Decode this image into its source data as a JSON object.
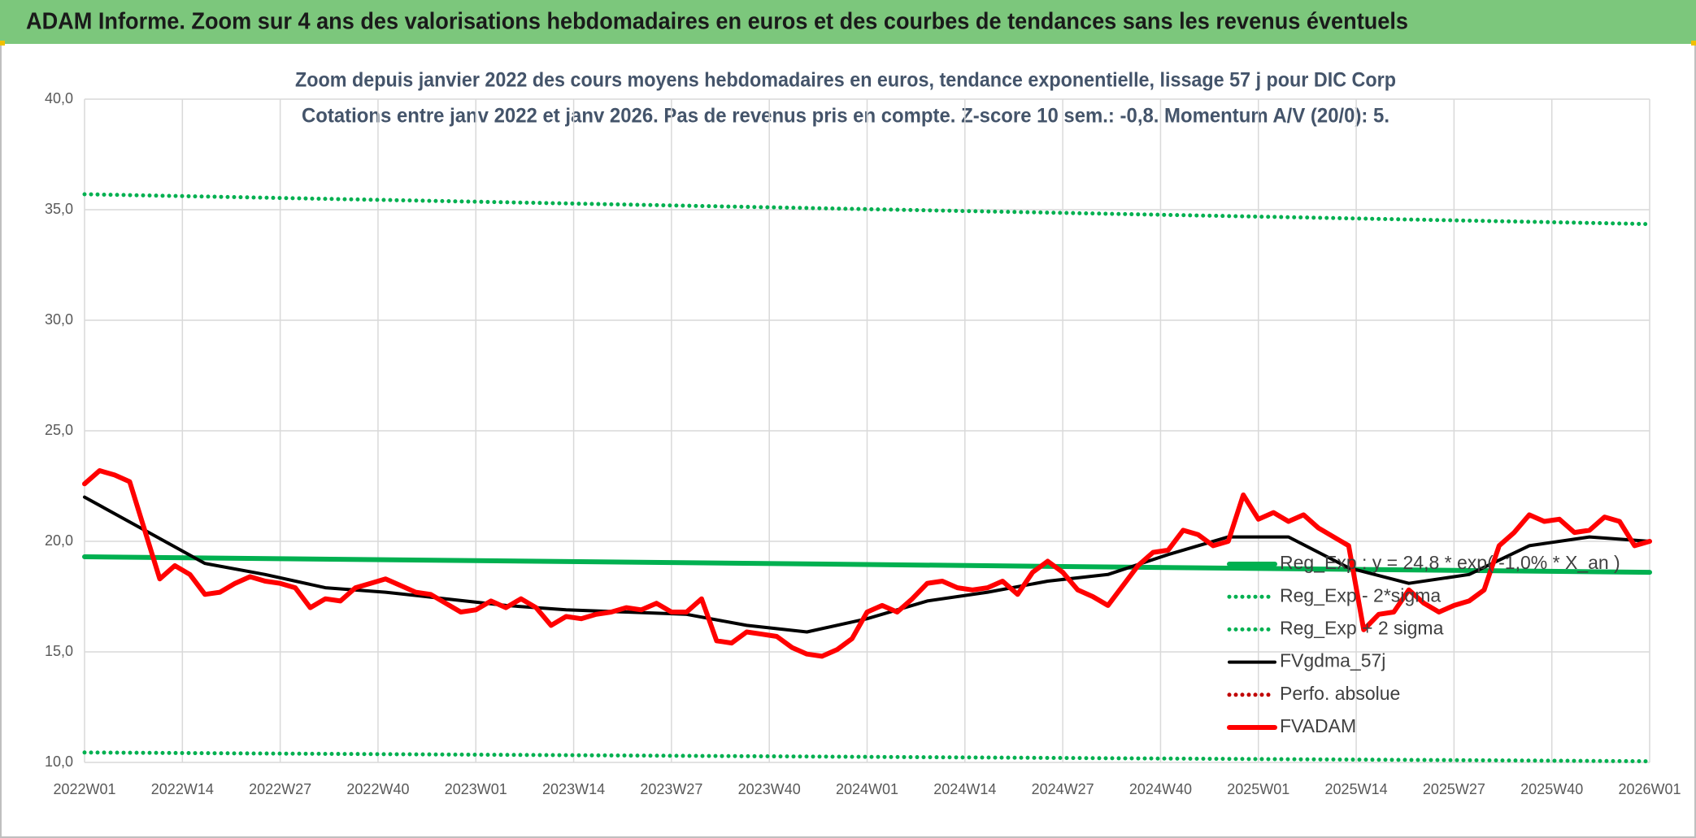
{
  "chart_data": {
    "type": "line",
    "header": "ADAM Informe. Zoom sur 4 ans des valorisations hebdomadaires en euros et des courbes de tendances sans les revenus éventuels",
    "subtitle_lines": [
      "Zoom depuis janvier 2022 des cours moyens hebdomadaires en euros, tendance exponentielle, lissage 57 j pour DIC Corp",
      "Cotations entre janv 2022 et janv 2026. Pas de revenus pris en compte. Z-score 10 sem.: -0,8. Momentum A/V (20/0): 5."
    ],
    "xlim": [
      0,
      208
    ],
    "xticks": [
      {
        "value": 0,
        "label": "2022W01"
      },
      {
        "value": 13,
        "label": "2022W14"
      },
      {
        "value": 26,
        "label": "2022W27"
      },
      {
        "value": 39,
        "label": "2022W40"
      },
      {
        "value": 52,
        "label": "2023W01"
      },
      {
        "value": 65,
        "label": "2023W14"
      },
      {
        "value": 78,
        "label": "2023W27"
      },
      {
        "value": 91,
        "label": "2023W40"
      },
      {
        "value": 104,
        "label": "2024W01"
      },
      {
        "value": 117,
        "label": "2024W14"
      },
      {
        "value": 130,
        "label": "2024W27"
      },
      {
        "value": 143,
        "label": "2024W40"
      },
      {
        "value": 156,
        "label": "2025W01"
      },
      {
        "value": 169,
        "label": "2025W14"
      },
      {
        "value": 182,
        "label": "2025W27"
      },
      {
        "value": 195,
        "label": "2025W40"
      },
      {
        "value": 208,
        "label": "2026W01"
      }
    ],
    "ylim": [
      10,
      40
    ],
    "yticks": [
      {
        "value": 10,
        "label": "10,0"
      },
      {
        "value": 15,
        "label": "15,0"
      },
      {
        "value": 20,
        "label": "20,0"
      },
      {
        "value": 25,
        "label": "25,0"
      },
      {
        "value": 30,
        "label": "30,0"
      },
      {
        "value": 35,
        "label": "35,0"
      },
      {
        "value": 40,
        "label": "40,0"
      }
    ],
    "grid": true,
    "series": [
      {
        "name": "Reg_Exp : y = 24,8 * exp( -1,0% *  X_an )",
        "color": "#00b050",
        "line_style": "thick",
        "x": [
          0,
          208
        ],
        "values": [
          19.3,
          18.6
        ]
      },
      {
        "name": "Reg_Exp - 2*sigma",
        "color": "#00b050",
        "line_style": "dotted",
        "x": [
          0,
          208
        ],
        "values": [
          10.45,
          10.05
        ]
      },
      {
        "name": "Reg_Exp + 2 sigma",
        "color": "#00b050",
        "line_style": "dotted",
        "x": [
          0,
          208
        ],
        "values": [
          35.7,
          34.35
        ]
      },
      {
        "name": "FVgdma_57j",
        "color": "#000000",
        "line_style": "solid",
        "x": [
          0,
          8,
          16,
          24,
          32,
          40,
          48,
          56,
          64,
          72,
          80,
          88,
          96,
          104,
          112,
          120,
          128,
          136,
          144,
          152,
          160,
          168,
          176,
          184,
          192,
          200,
          208
        ],
        "values": [
          22.0,
          20.5,
          19.0,
          18.5,
          17.9,
          17.7,
          17.4,
          17.1,
          16.9,
          16.8,
          16.7,
          16.2,
          15.9,
          16.5,
          17.3,
          17.7,
          18.2,
          18.5,
          19.4,
          20.2,
          20.2,
          18.8,
          18.1,
          18.5,
          19.8,
          20.2,
          20.0
        ]
      },
      {
        "name": "Perfo. absolue",
        "color": "#c00000",
        "line_style": "dotted",
        "x": [],
        "values": []
      },
      {
        "name": "FVADAM",
        "color": "#ff0000",
        "line_style": "thick",
        "x": [
          0,
          2,
          4,
          6,
          8,
          10,
          12,
          14,
          16,
          18,
          20,
          22,
          24,
          26,
          28,
          30,
          32,
          34,
          36,
          38,
          40,
          42,
          44,
          46,
          48,
          50,
          52,
          54,
          56,
          58,
          60,
          62,
          64,
          66,
          68,
          70,
          72,
          74,
          76,
          78,
          80,
          82,
          84,
          86,
          88,
          90,
          92,
          94,
          96,
          98,
          100,
          102,
          104,
          106,
          108,
          110,
          112,
          114,
          116,
          118,
          120,
          122,
          124,
          126,
          128,
          130,
          132,
          134,
          136,
          138,
          140,
          142,
          144,
          146,
          148,
          150,
          152,
          154,
          156,
          158,
          160,
          162,
          164,
          166,
          168,
          170,
          172,
          174,
          176,
          178,
          180,
          182,
          184,
          186,
          188,
          190,
          192,
          194,
          196,
          198,
          200,
          202,
          204,
          206,
          208
        ],
        "values": [
          22.6,
          23.2,
          23.0,
          22.7,
          20.5,
          18.3,
          18.9,
          18.5,
          17.6,
          17.7,
          18.1,
          18.4,
          18.2,
          18.1,
          17.9,
          17.0,
          17.4,
          17.3,
          17.9,
          18.1,
          18.3,
          18.0,
          17.7,
          17.6,
          17.2,
          16.8,
          16.9,
          17.3,
          17.0,
          17.4,
          17.0,
          16.2,
          16.6,
          16.5,
          16.7,
          16.8,
          17.0,
          16.9,
          17.2,
          16.8,
          16.8,
          17.4,
          15.5,
          15.4,
          15.9,
          15.8,
          15.7,
          15.2,
          14.9,
          14.8,
          15.1,
          15.6,
          16.8,
          17.1,
          16.8,
          17.4,
          18.1,
          18.2,
          17.9,
          17.8,
          17.9,
          18.2,
          17.6,
          18.6,
          19.1,
          18.6,
          17.8,
          17.5,
          17.1,
          18.0,
          18.9,
          19.5,
          19.6,
          20.5,
          20.3,
          19.8,
          20.0,
          22.1,
          21.0,
          21.3,
          20.9,
          21.2,
          20.6,
          20.2,
          19.8,
          16.0,
          16.7,
          16.8,
          17.8,
          17.2,
          16.8,
          17.1,
          17.3,
          17.8,
          19.8,
          20.4,
          21.2,
          20.9,
          21.0,
          20.4,
          20.5,
          21.1,
          20.9,
          19.8,
          20.0
        ]
      }
    ]
  }
}
